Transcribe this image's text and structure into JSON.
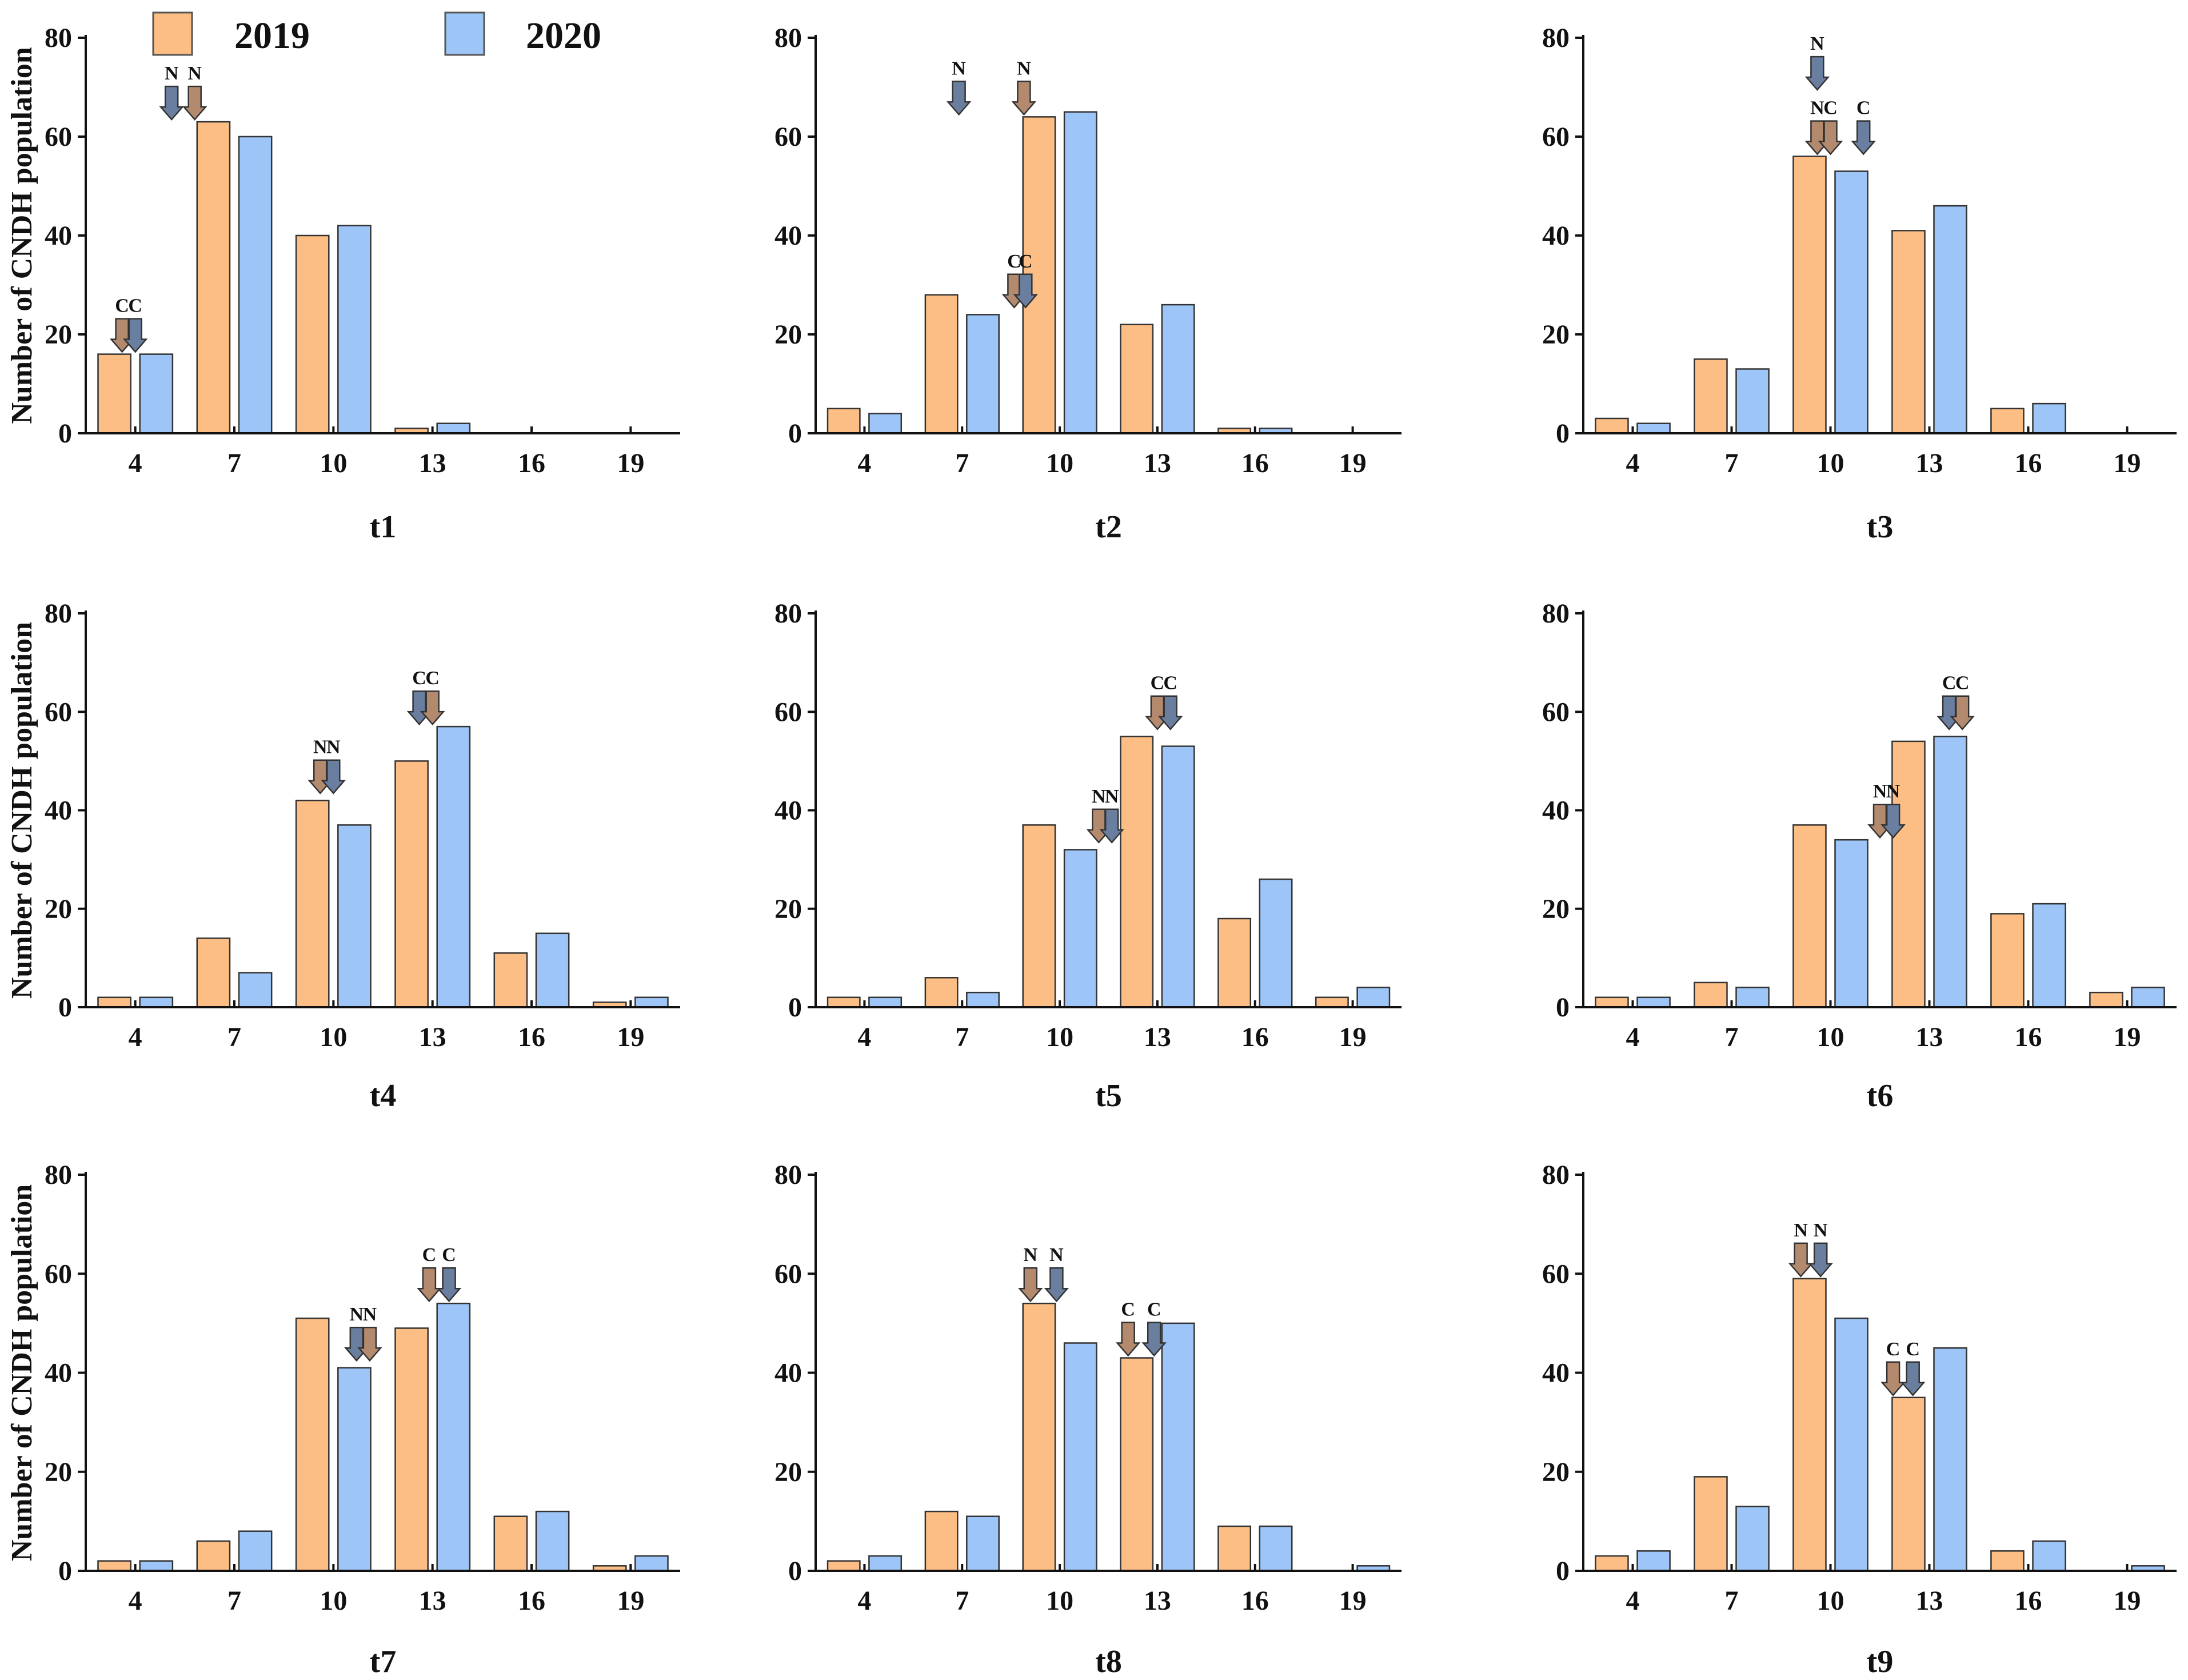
{
  "legend": {
    "items": [
      {
        "label": "2019",
        "color": "#FDBE85"
      },
      {
        "label": "2020",
        "color": "#9EC5F7"
      }
    ]
  },
  "colors": {
    "series_2019": "#FDBE85",
    "series_2020": "#9EC5F7",
    "arrow_2019": "#B48A6E",
    "arrow_2020": "#6A7F9F",
    "axis": "#111111"
  },
  "ylabel": "Number of CNDH population",
  "chart_data": [
    {
      "type": "bar",
      "title": "t1",
      "ylabel": "Number of CNDH population",
      "categories": [
        "4",
        "7",
        "10",
        "13",
        "16",
        "19"
      ],
      "ylim": [
        0,
        80
      ],
      "yticks": [
        0,
        20,
        40,
        60,
        80
      ],
      "series": [
        {
          "name": "2019",
          "values": [
            16,
            63,
            40,
            1,
            0,
            0
          ]
        },
        {
          "name": "2020",
          "values": [
            16,
            60,
            42,
            2,
            0,
            0
          ]
        }
      ],
      "markers": [
        {
          "series": "2019",
          "text": "C",
          "x": 3.6,
          "y": 16
        },
        {
          "series": "2020",
          "text": "C",
          "x": 4.0,
          "y": 16
        },
        {
          "series": "2020",
          "text": "N",
          "x": 5.1,
          "y": 63
        },
        {
          "series": "2019",
          "text": "N",
          "x": 5.8,
          "y": 63
        }
      ]
    },
    {
      "type": "bar",
      "title": "t2",
      "categories": [
        "4",
        "7",
        "10",
        "13",
        "16",
        "19"
      ],
      "ylim": [
        0,
        80
      ],
      "yticks": [
        0,
        20,
        40,
        60,
        80
      ],
      "series": [
        {
          "name": "2019",
          "values": [
            5,
            28,
            64,
            22,
            1,
            0
          ]
        },
        {
          "name": "2020",
          "values": [
            4,
            24,
            65,
            26,
            1,
            0
          ]
        }
      ],
      "markers": [
        {
          "series": "2020",
          "text": "N",
          "x": 6.9,
          "y": 64
        },
        {
          "series": "2019",
          "text": "N",
          "x": 8.9,
          "y": 64
        },
        {
          "series": "2019",
          "text": "C",
          "x": 8.6,
          "y": 25
        },
        {
          "series": "2020",
          "text": "C",
          "x": 8.95,
          "y": 25
        }
      ]
    },
    {
      "type": "bar",
      "title": "t3",
      "categories": [
        "4",
        "7",
        "10",
        "13",
        "16",
        "19"
      ],
      "ylim": [
        0,
        80
      ],
      "yticks": [
        0,
        20,
        40,
        60,
        80
      ],
      "series": [
        {
          "name": "2019",
          "values": [
            3,
            15,
            56,
            41,
            5,
            0
          ]
        },
        {
          "name": "2020",
          "values": [
            2,
            13,
            53,
            46,
            6,
            0
          ]
        }
      ],
      "markers": [
        {
          "series": "2020",
          "text": "N",
          "x": 9.6,
          "y": 69
        },
        {
          "series": "2019",
          "text": "N",
          "x": 9.6,
          "y": 56
        },
        {
          "series": "2019",
          "text": "C",
          "x": 10.0,
          "y": 56
        },
        {
          "series": "2020",
          "text": "C",
          "x": 11.0,
          "y": 56
        }
      ]
    },
    {
      "type": "bar",
      "title": "t4",
      "ylabel": "Number of CNDH population",
      "categories": [
        "4",
        "7",
        "10",
        "13",
        "16",
        "19"
      ],
      "ylim": [
        0,
        80
      ],
      "yticks": [
        0,
        20,
        40,
        60,
        80
      ],
      "series": [
        {
          "name": "2019",
          "values": [
            2,
            14,
            42,
            50,
            11,
            1
          ]
        },
        {
          "name": "2020",
          "values": [
            2,
            7,
            37,
            57,
            15,
            2
          ]
        }
      ],
      "markers": [
        {
          "series": "2019",
          "text": "N",
          "x": 9.6,
          "y": 43
        },
        {
          "series": "2020",
          "text": "N",
          "x": 10.0,
          "y": 43
        },
        {
          "series": "2020",
          "text": "C",
          "x": 12.6,
          "y": 57
        },
        {
          "series": "2019",
          "text": "C",
          "x": 13.0,
          "y": 57
        }
      ]
    },
    {
      "type": "bar",
      "title": "t5",
      "categories": [
        "4",
        "7",
        "10",
        "13",
        "16",
        "19"
      ],
      "ylim": [
        0,
        80
      ],
      "yticks": [
        0,
        20,
        40,
        60,
        80
      ],
      "series": [
        {
          "name": "2019",
          "values": [
            2,
            6,
            37,
            55,
            18,
            2
          ]
        },
        {
          "name": "2020",
          "values": [
            2,
            3,
            32,
            53,
            26,
            4
          ]
        }
      ],
      "markers": [
        {
          "series": "2019",
          "text": "N",
          "x": 11.2,
          "y": 33
        },
        {
          "series": "2020",
          "text": "N",
          "x": 11.6,
          "y": 33
        },
        {
          "series": "2019",
          "text": "C",
          "x": 13.0,
          "y": 56
        },
        {
          "series": "2020",
          "text": "C",
          "x": 13.4,
          "y": 56
        }
      ]
    },
    {
      "type": "bar",
      "title": "t6",
      "categories": [
        "4",
        "7",
        "10",
        "13",
        "16",
        "19"
      ],
      "ylim": [
        0,
        80
      ],
      "yticks": [
        0,
        20,
        40,
        60,
        80
      ],
      "series": [
        {
          "name": "2019",
          "values": [
            2,
            5,
            37,
            54,
            19,
            3
          ]
        },
        {
          "name": "2020",
          "values": [
            2,
            4,
            34,
            55,
            21,
            4
          ]
        }
      ],
      "markers": [
        {
          "series": "2019",
          "text": "N",
          "x": 11.5,
          "y": 34
        },
        {
          "series": "2020",
          "text": "N",
          "x": 11.9,
          "y": 34
        },
        {
          "series": "2020",
          "text": "C",
          "x": 13.6,
          "y": 56
        },
        {
          "series": "2019",
          "text": "C",
          "x": 14.0,
          "y": 56
        }
      ]
    },
    {
      "type": "bar",
      "title": "t7",
      "ylabel": "Number of CNDH population",
      "categories": [
        "4",
        "7",
        "10",
        "13",
        "16",
        "19"
      ],
      "ylim": [
        0,
        80
      ],
      "yticks": [
        0,
        20,
        40,
        60,
        80
      ],
      "series": [
        {
          "name": "2019",
          "values": [
            2,
            6,
            51,
            49,
            11,
            1
          ]
        },
        {
          "name": "2020",
          "values": [
            2,
            8,
            41,
            54,
            12,
            3
          ]
        }
      ],
      "markers": [
        {
          "series": "2020",
          "text": "N",
          "x": 10.7,
          "y": 42
        },
        {
          "series": "2019",
          "text": "N",
          "x": 11.1,
          "y": 42
        },
        {
          "series": "2019",
          "text": "C",
          "x": 12.9,
          "y": 54
        },
        {
          "series": "2020",
          "text": "C",
          "x": 13.5,
          "y": 54
        }
      ]
    },
    {
      "type": "bar",
      "title": "t8",
      "categories": [
        "4",
        "7",
        "10",
        "13",
        "16",
        "19"
      ],
      "ylim": [
        0,
        80
      ],
      "yticks": [
        0,
        20,
        40,
        60,
        80
      ],
      "series": [
        {
          "name": "2019",
          "values": [
            2,
            12,
            54,
            43,
            9,
            0
          ]
        },
        {
          "name": "2020",
          "values": [
            3,
            11,
            46,
            50,
            9,
            1
          ]
        }
      ],
      "markers": [
        {
          "series": "2019",
          "text": "N",
          "x": 9.1,
          "y": 54
        },
        {
          "series": "2020",
          "text": "N",
          "x": 9.9,
          "y": 54
        },
        {
          "series": "2019",
          "text": "C",
          "x": 12.1,
          "y": 43
        },
        {
          "series": "2020",
          "text": "C",
          "x": 12.9,
          "y": 43
        }
      ]
    },
    {
      "type": "bar",
      "title": "t9",
      "categories": [
        "4",
        "7",
        "10",
        "13",
        "16",
        "19"
      ],
      "ylim": [
        0,
        80
      ],
      "yticks": [
        0,
        20,
        40,
        60,
        80
      ],
      "series": [
        {
          "name": "2019",
          "values": [
            3,
            19,
            59,
            35,
            4,
            0
          ]
        },
        {
          "name": "2020",
          "values": [
            4,
            13,
            51,
            45,
            6,
            1
          ]
        }
      ],
      "markers": [
        {
          "series": "2019",
          "text": "N",
          "x": 9.1,
          "y": 59
        },
        {
          "series": "2020",
          "text": "N",
          "x": 9.7,
          "y": 59
        },
        {
          "series": "2019",
          "text": "C",
          "x": 11.9,
          "y": 35
        },
        {
          "series": "2020",
          "text": "C",
          "x": 12.5,
          "y": 35
        }
      ]
    }
  ]
}
